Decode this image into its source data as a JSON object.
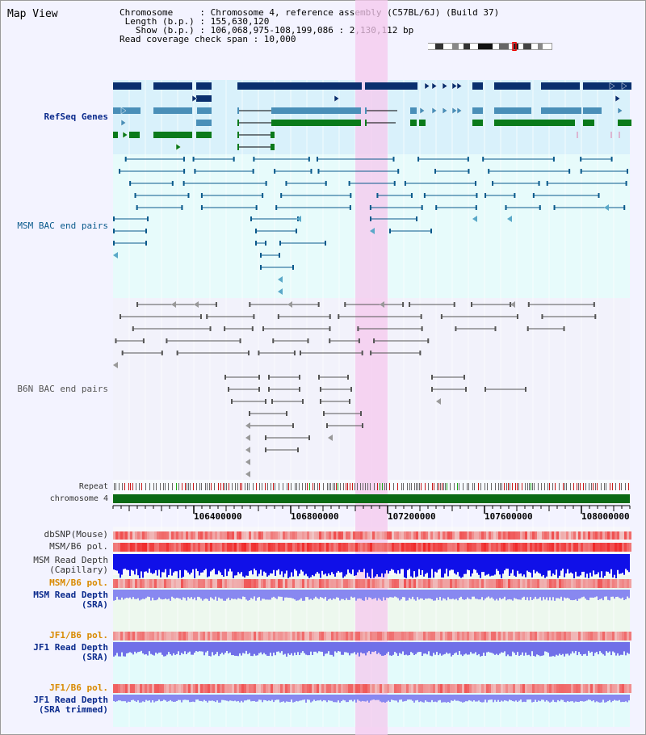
{
  "title": "Map View",
  "info": {
    "lines": [
      "Chromosome     : Chromosome 4, reference assembly (C57BL/6J) (Build 37)",
      " Length (b.p.) : 155,630,120",
      "   Show (b.p.) : 106,068,975-108,199,086 : 2,130,112 bp",
      "Read coverage check span : 10,000"
    ]
  },
  "tracks": {
    "refseq": "RefSeq Genes",
    "msm_bac": "MSM BAC end pairs",
    "b6n_bac": "B6N BAC end pairs",
    "repeat": "Repeat",
    "chromosome": "chromosome 4",
    "dbsnp": "dbSNP(Mouse)",
    "msm_b6_pol_1": "MSM/B6 pol.",
    "msm_read_depth_cap": "MSM Read Depth\n(Capillary)",
    "msm_b6_pol_2": "MSM/B6 pol.",
    "msm_read_depth_sra": "MSM Read Depth\n(SRA)",
    "jf1_b6_pol_1": "JF1/B6 pol.",
    "jf1_read_depth_sra": "JF1 Read Depth\n(SRA)",
    "jf1_b6_pol_2": "JF1/B6 pol.",
    "jf1_read_depth_trim": "JF1 Read Depth\n(SRA trimmed)"
  },
  "axis": {
    "ticks": [
      "106400000",
      "106800000",
      "107200000",
      "107600000",
      "108000000"
    ]
  },
  "colors": {
    "refseq_bg": "#d9f1fb",
    "bac_bg": "#e7fbfb",
    "b6n_bg": "#f2f2fb",
    "highlight": "#f6d2f2",
    "gene_dark": "#0a2f6e",
    "gene_mid": "#4a8fb8",
    "gene_green": "#0a7a1a",
    "bac_line": "#0a5a8c",
    "b6n_line": "#555555",
    "chrom_green": "#0a6a14"
  }
}
